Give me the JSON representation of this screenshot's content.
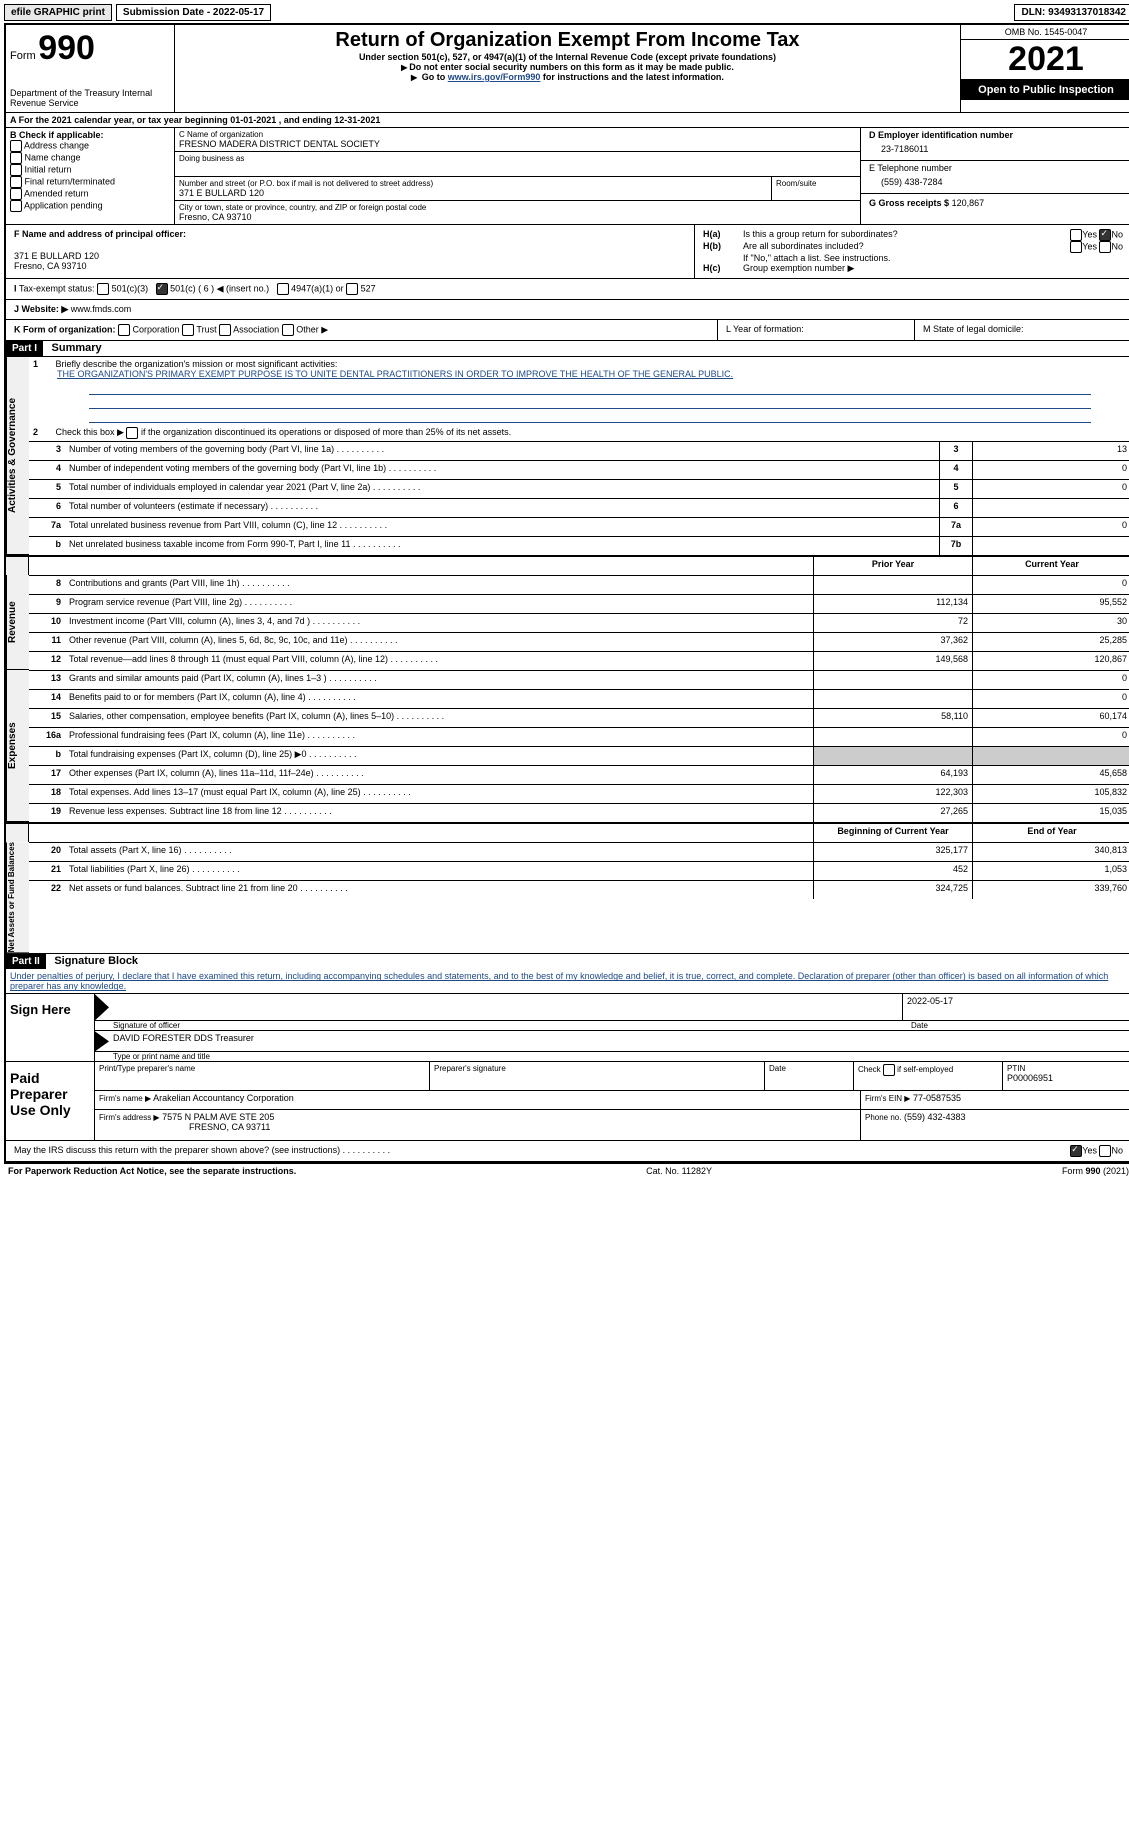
{
  "topbar": {
    "efile": "efile GRAPHIC print",
    "submission": "Submission Date - 2022-05-17",
    "dln": "DLN: 93493137018342"
  },
  "header": {
    "form_label": "Form",
    "form_number": "990",
    "title": "Return of Organization Exempt From Income Tax",
    "subtitle": "Under section 501(c), 527, or 4947(a)(1) of the Internal Revenue Code (except private foundations)",
    "note1": "Do not enter social security numbers on this form as it may be made public.",
    "note2_pre": "Go to ",
    "note2_link": "www.irs.gov/Form990",
    "note2_post": " for instructions and the latest information.",
    "dept": "Department of the Treasury\nInternal Revenue Service",
    "omb": "OMB No. 1545-0047",
    "tax_year": "2021",
    "open": "Open to Public Inspection"
  },
  "lineA": "For the 2021 calendar year, or tax year beginning 01-01-2021    , and ending 12-31-2021",
  "sectionB": {
    "label": "B Check if applicable:",
    "items": [
      "Address change",
      "Name change",
      "Initial return",
      "Final return/terminated",
      "Amended return",
      "Application pending"
    ]
  },
  "sectionC": {
    "name_label": "C Name of organization",
    "name": "FRESNO MADERA DISTRICT DENTAL SOCIETY",
    "dba_label": "Doing business as",
    "dba": "",
    "street_label": "Number and street (or P.O. box if mail is not delivered to street address)",
    "room_label": "Room/suite",
    "street": "371 E BULLARD 120",
    "city_label": "City or town, state or province, country, and ZIP or foreign postal code",
    "city": "Fresno, CA  93710"
  },
  "sectionD": {
    "label": "D Employer identification number",
    "value": "23-7186011"
  },
  "sectionE": {
    "label": "E Telephone number",
    "value": "(559) 438-7284"
  },
  "sectionG": {
    "label": "G Gross receipts $",
    "value": "120,867"
  },
  "sectionF": {
    "label": "F  Name and address of principal officer:",
    "line1": "371 E BULLARD 120",
    "line2": "Fresno, CA  93710"
  },
  "sectionH": {
    "a": "Is this a group return for subordinates?",
    "b": "Are all subordinates included?",
    "b_note": "If \"No,\" attach a list. See instructions.",
    "c": "Group exemption number ▶",
    "yes": "Yes",
    "no": "No"
  },
  "sectionI": {
    "label": "Tax-exempt status:",
    "opt1": "501(c)(3)",
    "opt2": "501(c) ( 6 ) ◀ (insert no.)",
    "opt3": "4947(a)(1) or",
    "opt4": "527"
  },
  "sectionJ": {
    "label": "Website: ▶",
    "value": "www.fmds.com"
  },
  "sectionK": {
    "label": "K Form of organization:",
    "opts": [
      "Corporation",
      "Trust",
      "Association",
      "Other ▶"
    ]
  },
  "sectionL": {
    "label": "L Year of formation:"
  },
  "sectionM": {
    "label": "M State of legal domicile:"
  },
  "part1": {
    "header": "Part I",
    "title": "Summary",
    "q1_label": "Briefly describe the organization's mission or most significant activities:",
    "q1_text": "THE ORGANIZATION'S PRIMARY EXEMPT PURPOSE IS TO UNITE DENTAL PRACTIITIONERS IN ORDER TO IMPROVE THE HEALTH OF THE GENERAL PUBLIC.",
    "q2": "Check this box ▶        if the organization discontinued its operations or disposed of more than 25% of its net assets.",
    "side_labels": [
      "Activities & Governance",
      "Revenue",
      "Expenses",
      "Net Assets or Fund Balances"
    ],
    "col_prior": "Prior Year",
    "col_current": "Current Year",
    "col_begin": "Beginning of Current Year",
    "col_end": "End of Year",
    "rows_gov": [
      {
        "n": "3",
        "label": "Number of voting members of the governing body (Part VI, line 1a)",
        "box": "3",
        "val": "13"
      },
      {
        "n": "4",
        "label": "Number of independent voting members of the governing body (Part VI, line 1b)",
        "box": "4",
        "val": "0"
      },
      {
        "n": "5",
        "label": "Total number of individuals employed in calendar year 2021 (Part V, line 2a)",
        "box": "5",
        "val": "0"
      },
      {
        "n": "6",
        "label": "Total number of volunteers (estimate if necessary)",
        "box": "6",
        "val": ""
      },
      {
        "n": "7a",
        "label": "Total unrelated business revenue from Part VIII, column (C), line 12",
        "box": "7a",
        "val": "0"
      },
      {
        "n": "b",
        "label": "Net unrelated business taxable income from Form 990-T, Part I, line 11",
        "box": "7b",
        "val": ""
      }
    ],
    "rows_rev": [
      {
        "n": "8",
        "label": "Contributions and grants (Part VIII, line 1h)",
        "p": "",
        "c": "0"
      },
      {
        "n": "9",
        "label": "Program service revenue (Part VIII, line 2g)",
        "p": "112,134",
        "c": "95,552"
      },
      {
        "n": "10",
        "label": "Investment income (Part VIII, column (A), lines 3, 4, and 7d )",
        "p": "72",
        "c": "30"
      },
      {
        "n": "11",
        "label": "Other revenue (Part VIII, column (A), lines 5, 6d, 8c, 9c, 10c, and 11e)",
        "p": "37,362",
        "c": "25,285"
      },
      {
        "n": "12",
        "label": "Total revenue—add lines 8 through 11 (must equal Part VIII, column (A), line 12)",
        "p": "149,568",
        "c": "120,867"
      }
    ],
    "rows_exp": [
      {
        "n": "13",
        "label": "Grants and similar amounts paid (Part IX, column (A), lines 1–3 )",
        "p": "",
        "c": "0"
      },
      {
        "n": "14",
        "label": "Benefits paid to or for members (Part IX, column (A), line 4)",
        "p": "",
        "c": "0"
      },
      {
        "n": "15",
        "label": "Salaries, other compensation, employee benefits (Part IX, column (A), lines 5–10)",
        "p": "58,110",
        "c": "60,174"
      },
      {
        "n": "16a",
        "label": "Professional fundraising fees (Part IX, column (A), line 11e)",
        "p": "",
        "c": "0"
      },
      {
        "n": "b",
        "label": "Total fundraising expenses (Part IX, column (D), line 25) ▶0",
        "p": "grey",
        "c": "grey"
      },
      {
        "n": "17",
        "label": "Other expenses (Part IX, column (A), lines 11a–11d, 11f–24e)",
        "p": "64,193",
        "c": "45,658"
      },
      {
        "n": "18",
        "label": "Total expenses. Add lines 13–17 (must equal Part IX, column (A), line 25)",
        "p": "122,303",
        "c": "105,832"
      },
      {
        "n": "19",
        "label": "Revenue less expenses. Subtract line 18 from line 12",
        "p": "27,265",
        "c": "15,035"
      }
    ],
    "rows_net": [
      {
        "n": "20",
        "label": "Total assets (Part X, line 16)",
        "p": "325,177",
        "c": "340,813"
      },
      {
        "n": "21",
        "label": "Total liabilities (Part X, line 26)",
        "p": "452",
        "c": "1,053"
      },
      {
        "n": "22",
        "label": "Net assets or fund balances. Subtract line 21 from line 20",
        "p": "324,725",
        "c": "339,760"
      }
    ]
  },
  "part2": {
    "header": "Part II",
    "title": "Signature Block",
    "penalty": "Under penalties of perjury, I declare that I have examined this return, including accompanying schedules and statements, and to the best of my knowledge and belief, it is true, correct, and complete. Declaration of preparer (other than officer) is based on all information of which preparer has any knowledge.",
    "sign_here": "Sign Here",
    "sig_officer": "Signature of officer",
    "sig_date": "2022-05-17",
    "date_label": "Date",
    "officer_name": "DAVID FORESTER DDS  Treasurer",
    "name_label": "Type or print name and title",
    "paid": "Paid Preparer Use Only",
    "prep_name_label": "Print/Type preparer's name",
    "prep_sig_label": "Preparer's signature",
    "check_label": "Check         if self-employed",
    "ptin_label": "PTIN",
    "ptin": "P00006951",
    "firm_name_label": "Firm's name    ▶",
    "firm_name": "Arakelian Accountancy Corporation",
    "firm_ein_label": "Firm's EIN ▶",
    "firm_ein": "77-0587535",
    "firm_addr_label": "Firm's address ▶",
    "firm_addr1": "7575 N PALM AVE STE 205",
    "firm_addr2": "FRESNO, CA  93711",
    "phone_label": "Phone no.",
    "phone": "(559) 432-4383",
    "discuss": "May the IRS discuss this return with the preparer shown above? (see instructions)"
  },
  "footer": {
    "left": "For Paperwork Reduction Act Notice, see the separate instructions.",
    "mid": "Cat. No. 11282Y",
    "right": "Form 990 (2021)"
  }
}
